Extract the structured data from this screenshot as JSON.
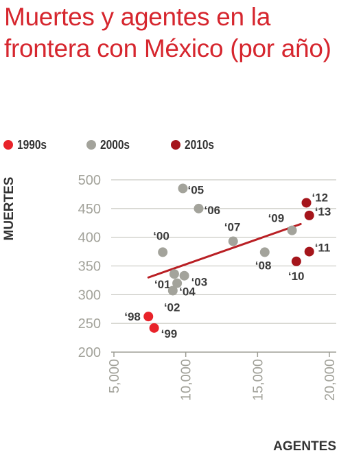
{
  "chart_data": {
    "type": "scatter",
    "title": "Muertes y agentes en la frontera con México (por año)",
    "xlabel": "AGENTES",
    "ylabel": "MUERTES",
    "xlim": [
      5000,
      20000
    ],
    "ylim": [
      200,
      500
    ],
    "x_ticks": [
      "5,000",
      "10,000",
      "15,000",
      "20,000"
    ],
    "y_ticks": [
      "200",
      "250",
      "300",
      "350",
      "400",
      "450",
      "500"
    ],
    "grid": "horizontal",
    "legend": [
      {
        "name": "1990s",
        "color": "#e8232a"
      },
      {
        "name": "2000s",
        "color": "#a3a39b"
      },
      {
        "name": "2010s",
        "color": "#a5151b"
      }
    ],
    "points": [
      {
        "label": "‘98",
        "x": 7400,
        "y": 262,
        "group": "1990s"
      },
      {
        "label": "‘99",
        "x": 7800,
        "y": 242,
        "group": "1990s"
      },
      {
        "label": "‘00",
        "x": 8400,
        "y": 374,
        "group": "2000s"
      },
      {
        "label": "‘01",
        "x": 9200,
        "y": 336,
        "group": "2000s"
      },
      {
        "label": "‘02",
        "x": 9100,
        "y": 307,
        "group": "2000s"
      },
      {
        "label": "‘03",
        "x": 9900,
        "y": 333,
        "group": "2000s"
      },
      {
        "label": "‘04",
        "x": 9400,
        "y": 320,
        "group": "2000s"
      },
      {
        "label": "‘05",
        "x": 9800,
        "y": 485,
        "group": "2000s"
      },
      {
        "label": "‘06",
        "x": 10900,
        "y": 450,
        "group": "2000s"
      },
      {
        "label": "‘07",
        "x": 13300,
        "y": 393,
        "group": "2000s"
      },
      {
        "label": "‘08",
        "x": 15500,
        "y": 374,
        "group": "2000s"
      },
      {
        "label": "‘09",
        "x": 17400,
        "y": 412,
        "group": "2000s"
      },
      {
        "label": "‘10",
        "x": 17700,
        "y": 358,
        "group": "2010s"
      },
      {
        "label": "‘11",
        "x": 18600,
        "y": 375,
        "group": "2010s"
      },
      {
        "label": "‘12",
        "x": 18400,
        "y": 460,
        "group": "2010s"
      },
      {
        "label": "‘13",
        "x": 18600,
        "y": 438,
        "group": "2010s"
      }
    ],
    "trendline": {
      "x": [
        7400,
        18000
      ],
      "y": [
        330,
        423
      ],
      "color": "#b91f24"
    }
  }
}
